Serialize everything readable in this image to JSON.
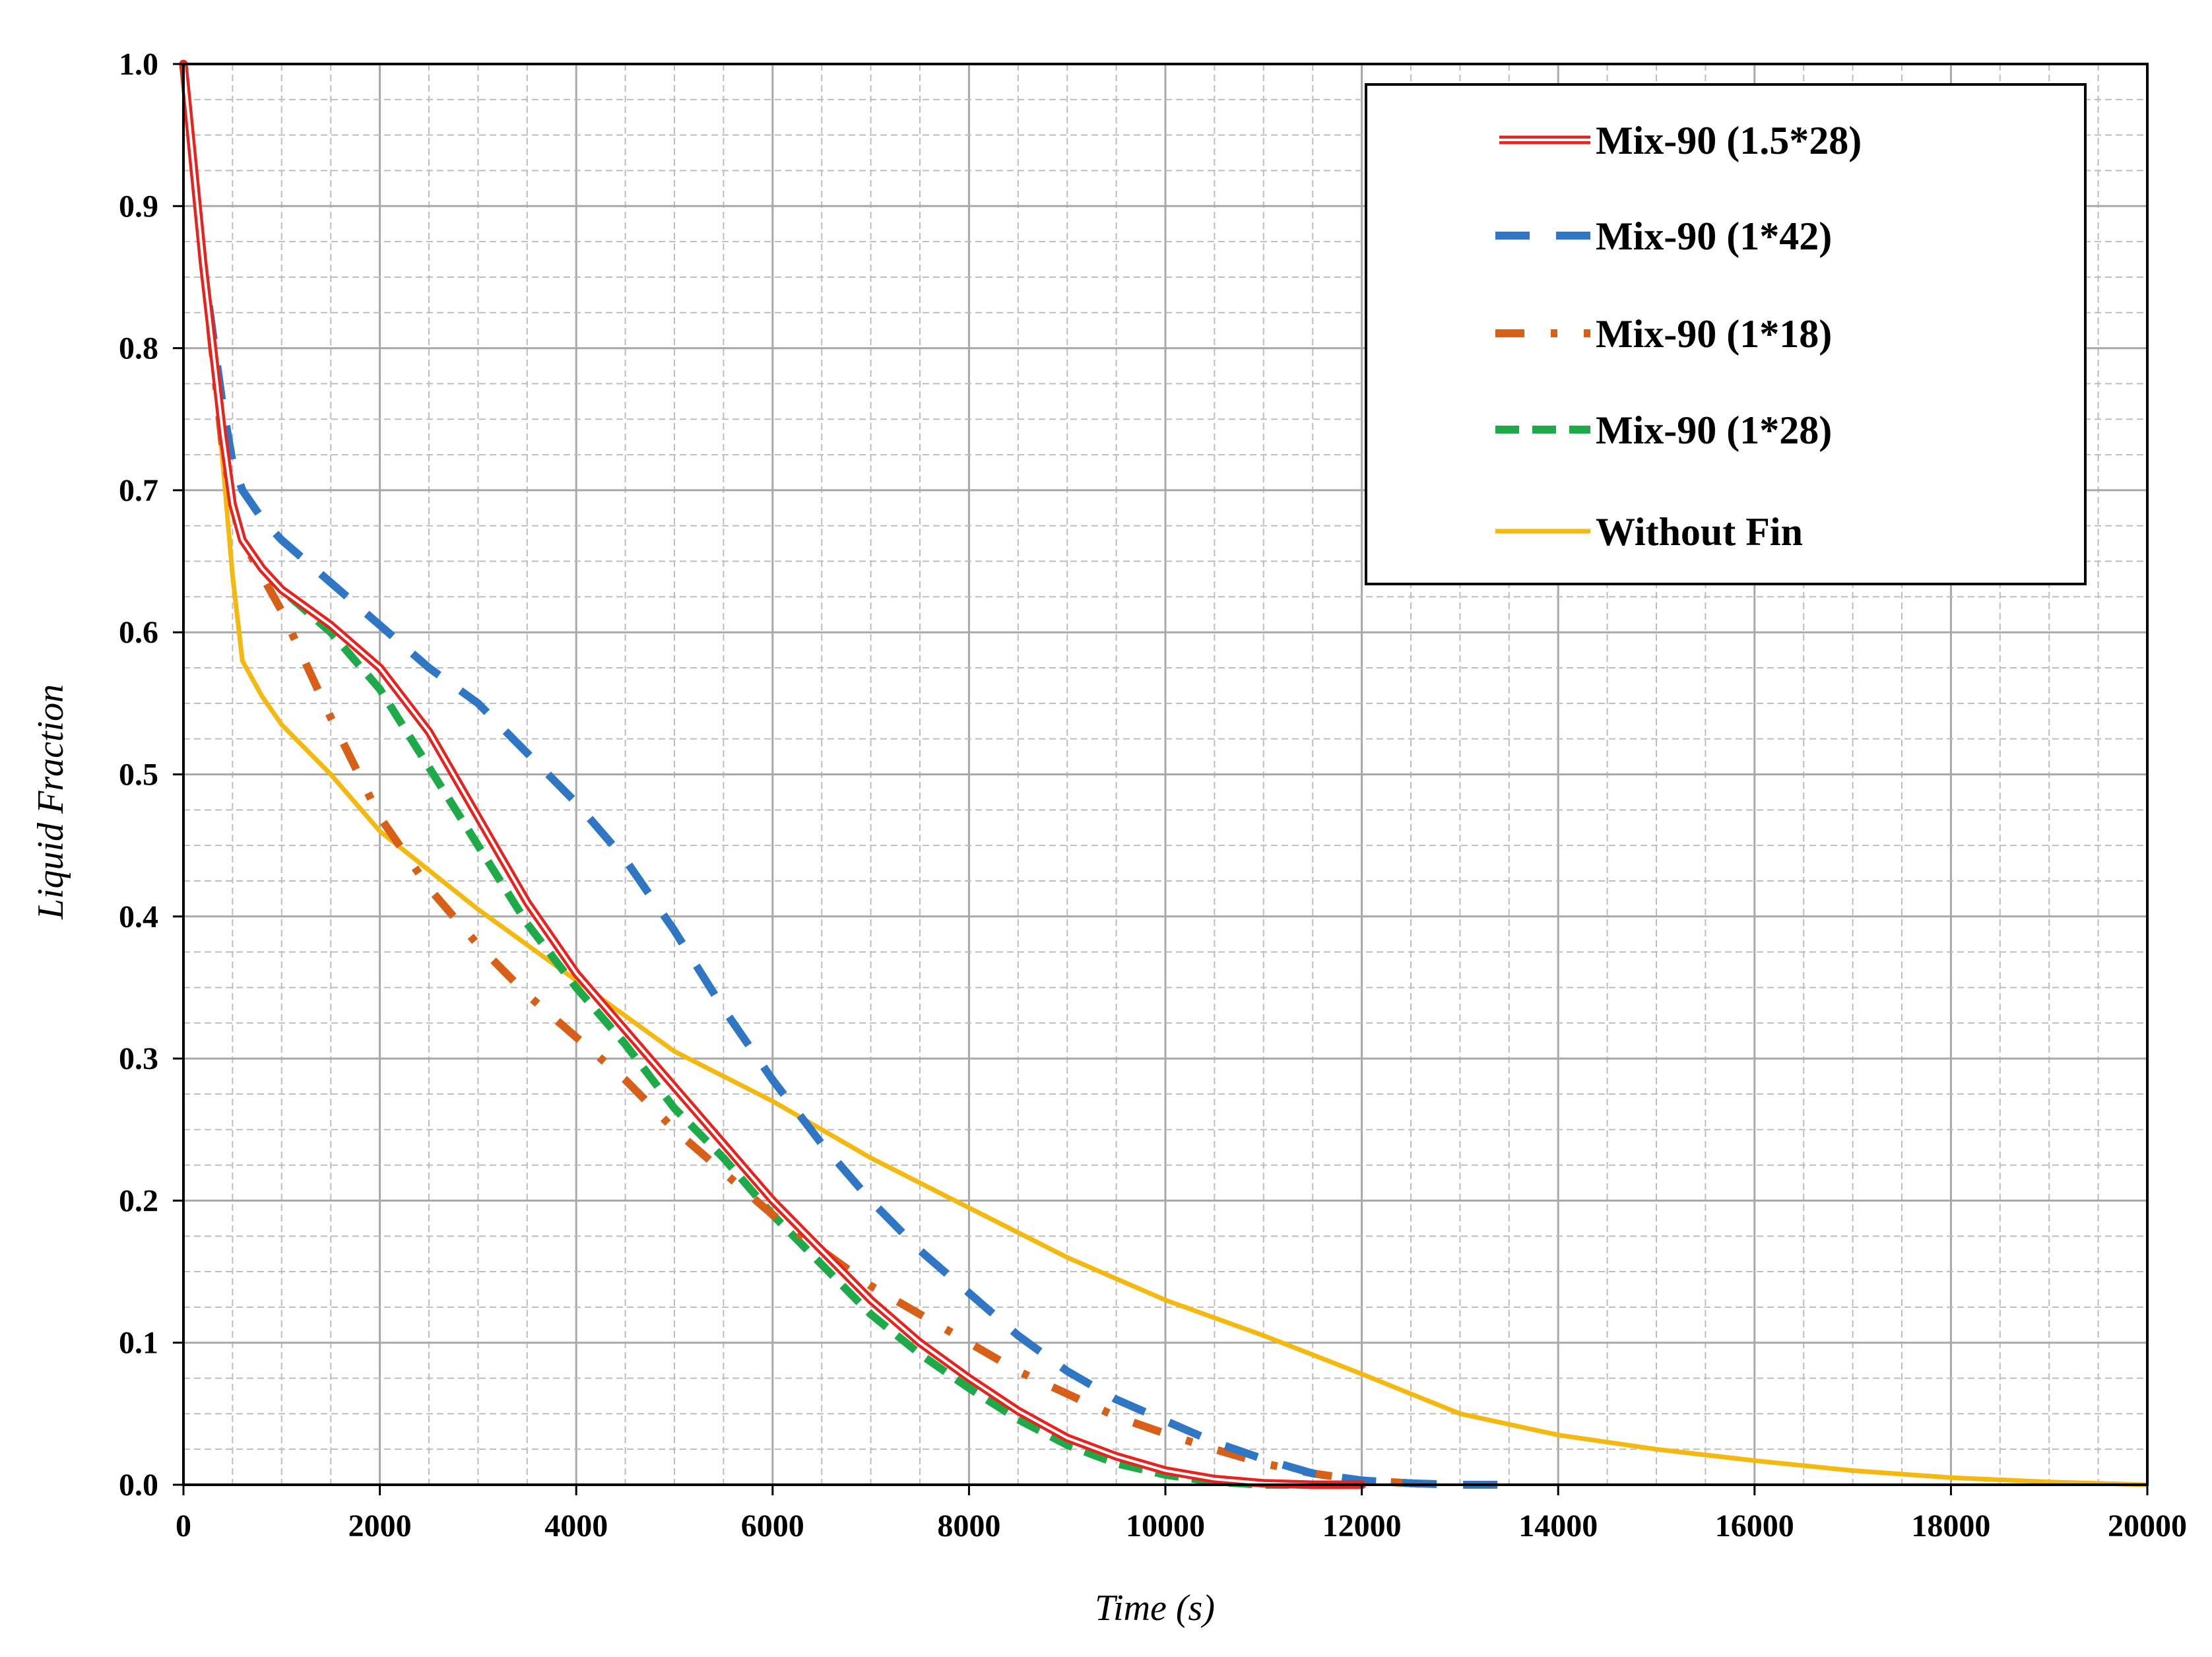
{
  "chart_data": {
    "type": "line",
    "title": "",
    "xlabel": "Time (s)",
    "ylabel": "Liquid Fraction",
    "xlim": [
      0,
      20000
    ],
    "ylim": [
      0,
      1.0
    ],
    "x_ticks": [
      "0",
      "2000",
      "4000",
      "6000",
      "8000",
      "10000",
      "12000",
      "14000",
      "16000",
      "18000",
      "20000"
    ],
    "y_ticks": [
      "0.0",
      "0.1",
      "0.2",
      "0.3",
      "0.4",
      "0.5",
      "0.6",
      "0.7",
      "0.8",
      "0.9",
      "1.0"
    ],
    "x_tick_values": [
      0,
      2000,
      4000,
      6000,
      8000,
      10000,
      12000,
      14000,
      16000,
      18000,
      20000
    ],
    "y_tick_values": [
      0,
      0.1,
      0.2,
      0.3,
      0.4,
      0.5,
      0.6,
      0.7,
      0.8,
      0.9,
      1.0
    ],
    "grid": true,
    "minor_grid": true,
    "legend_position": "top-right",
    "series": [
      {
        "name": "Mix-90 (1.5*28)",
        "color": "#e8231f",
        "style": "double-solid",
        "x": [
          0,
          200,
          400,
          500,
          600,
          800,
          1000,
          1500,
          2000,
          2500,
          3000,
          3500,
          4000,
          4500,
          5000,
          5500,
          6000,
          6500,
          7000,
          7500,
          8000,
          8500,
          9000,
          9500,
          10000,
          10500,
          11000,
          11500,
          12000
        ],
        "y": [
          1.0,
          0.86,
          0.74,
          0.69,
          0.665,
          0.645,
          0.63,
          0.605,
          0.575,
          0.53,
          0.47,
          0.41,
          0.36,
          0.32,
          0.28,
          0.24,
          0.2,
          0.165,
          0.13,
          0.1,
          0.075,
          0.052,
          0.033,
          0.02,
          0.01,
          0.004,
          0.001,
          0.0,
          0.0
        ]
      },
      {
        "name": "Mix-90 (1*42)",
        "color": "#2f77c4",
        "style": "long-dash",
        "x": [
          0,
          200,
          400,
          500,
          600,
          800,
          1000,
          1500,
          2000,
          2500,
          3000,
          3500,
          4000,
          4500,
          5000,
          5500,
          6000,
          6500,
          7000,
          7500,
          8000,
          8500,
          9000,
          9500,
          10000,
          10500,
          11000,
          11500,
          12000,
          12500,
          13000,
          13500
        ],
        "y": [
          1.0,
          0.86,
          0.76,
          0.72,
          0.7,
          0.68,
          0.665,
          0.635,
          0.605,
          0.575,
          0.55,
          0.515,
          0.48,
          0.44,
          0.39,
          0.335,
          0.285,
          0.24,
          0.2,
          0.165,
          0.135,
          0.105,
          0.08,
          0.06,
          0.045,
          0.03,
          0.018,
          0.008,
          0.003,
          0.001,
          0.0,
          0.0
        ]
      },
      {
        "name": "Mix-90 (1*18)",
        "color": "#d75f17",
        "style": "dash-dot",
        "x": [
          0,
          200,
          400,
          500,
          600,
          800,
          1000,
          1500,
          2000,
          2500,
          3000,
          3500,
          4000,
          4500,
          5000,
          5500,
          6000,
          6500,
          7000,
          7500,
          8000,
          8500,
          9000,
          9500,
          10000,
          10500,
          11000,
          11500,
          12000,
          12500,
          12800
        ],
        "y": [
          1.0,
          0.86,
          0.73,
          0.69,
          0.665,
          0.64,
          0.615,
          0.54,
          0.47,
          0.42,
          0.38,
          0.345,
          0.315,
          0.285,
          0.25,
          0.22,
          0.19,
          0.165,
          0.14,
          0.12,
          0.1,
          0.08,
          0.064,
          0.048,
          0.036,
          0.025,
          0.015,
          0.008,
          0.003,
          0.001,
          0.0
        ]
      },
      {
        "name": "Mix-90 (1*28)",
        "color": "#1faa4a",
        "style": "dash",
        "x": [
          0,
          200,
          400,
          500,
          600,
          800,
          1000,
          1500,
          2000,
          2500,
          3000,
          3500,
          4000,
          4500,
          5000,
          5500,
          6000,
          6500,
          7000,
          7500,
          8000,
          8500,
          9000,
          9500,
          10000,
          10500,
          11000,
          11500
        ],
        "y": [
          1.0,
          0.86,
          0.74,
          0.69,
          0.665,
          0.645,
          0.63,
          0.6,
          0.56,
          0.505,
          0.45,
          0.395,
          0.35,
          0.31,
          0.265,
          0.23,
          0.19,
          0.155,
          0.12,
          0.092,
          0.068,
          0.046,
          0.028,
          0.015,
          0.007,
          0.002,
          0.0,
          0.0
        ]
      },
      {
        "name": "Without Fin",
        "color": "#f5b80f",
        "style": "solid",
        "x": [
          0,
          200,
          400,
          500,
          600,
          800,
          1000,
          1500,
          2000,
          3000,
          4000,
          5000,
          6000,
          7000,
          8000,
          9000,
          10000,
          11000,
          12000,
          13000,
          14000,
          15000,
          16000,
          17000,
          18000,
          19000,
          20000
        ],
        "y": [
          1.0,
          0.87,
          0.72,
          0.64,
          0.58,
          0.555,
          0.535,
          0.5,
          0.46,
          0.405,
          0.355,
          0.305,
          0.27,
          0.23,
          0.195,
          0.16,
          0.13,
          0.105,
          0.078,
          0.05,
          0.035,
          0.025,
          0.017,
          0.01,
          0.005,
          0.002,
          0.0
        ]
      }
    ]
  }
}
